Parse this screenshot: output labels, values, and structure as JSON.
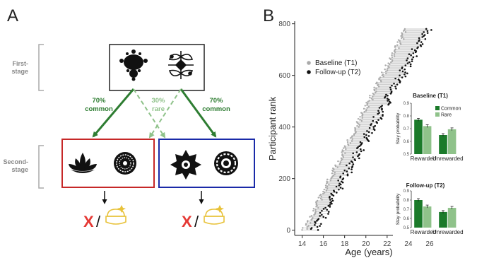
{
  "panel_a": {
    "label": "A",
    "first_stage_label": [
      "First-",
      "stage"
    ],
    "second_stage_label": [
      "Second-",
      "stage"
    ],
    "left_arrow": {
      "pct": "70%",
      "word": "common"
    },
    "mid_arrow": {
      "pct": "30%",
      "word": "rare"
    },
    "right_arrow": {
      "pct": "70%",
      "word": "common"
    },
    "outcome_x": "X",
    "outcome_slash": "/",
    "colors": {
      "green": "#2e7d32",
      "light_green": "#8fc28a",
      "red_box": "#c62828",
      "blue_box": "#1a2aa8",
      "gold": "#e8c23a",
      "red_x": "#e53935"
    },
    "icons": [
      "fractal-icon",
      "ornament-icon",
      "lotus-icon",
      "rosette-icon",
      "star-flower-icon",
      "daisy-icon",
      "treasure-icon"
    ]
  },
  "panel_b": {
    "label": "B",
    "legend": [
      "Baseline (T1)",
      "Follow-up (T2)"
    ],
    "chart_data": [
      {
        "type": "scatter",
        "xlabel": "Age (years)",
        "ylabel": "Participant rank",
        "xlim": [
          13.3,
          26.8
        ],
        "ylim": [
          -20,
          810
        ],
        "xticks": [
          "14",
          "16",
          "18",
          "20",
          "22",
          "24",
          "26"
        ],
        "yticks": [
          "0",
          "200",
          "400",
          "600",
          "800"
        ],
        "grid": false,
        "legend_position": "top-left",
        "series": [
          {
            "name": "Baseline (T1)",
            "color": "#aaaaaa",
            "x_start": 14.2,
            "x_end": 23.8,
            "rank_min": 1,
            "rank_max": 780
          },
          {
            "name": "Follow-up (T2)",
            "color": "#111111",
            "x_start": 15.2,
            "x_end": 25.8,
            "rank_min": 1,
            "rank_max": 780
          }
        ]
      },
      {
        "type": "bar",
        "title": "Baseline (T1)",
        "ylabel": "Stay probability",
        "categories": [
          "Rewarded",
          "Unrewarded"
        ],
        "ylim": [
          0.5,
          0.9
        ],
        "yticks": [
          "0.5",
          "0.6",
          "0.7",
          "0.8",
          "0.9"
        ],
        "legend_position": "top-right",
        "series": [
          {
            "name": "Common",
            "color": "#1b7a2a",
            "values": [
              0.77,
              0.65
            ]
          },
          {
            "name": "Rare",
            "color": "#8fc28a",
            "values": [
              0.72,
              0.695
            ]
          }
        ]
      },
      {
        "type": "bar",
        "title": "Follow-up  (T2)",
        "ylabel": "Stay probability",
        "categories": [
          "Rewarded",
          "Unrewarded"
        ],
        "ylim": [
          0.5,
          0.9
        ],
        "yticks": [
          "0.5",
          "0.6",
          "0.7",
          "0.8",
          "0.9"
        ],
        "series": [
          {
            "name": "Common",
            "color": "#1b7a2a",
            "values": [
              0.8,
              0.67
            ]
          },
          {
            "name": "Rare",
            "color": "#8fc28a",
            "values": [
              0.73,
              0.715
            ]
          }
        ]
      }
    ]
  }
}
